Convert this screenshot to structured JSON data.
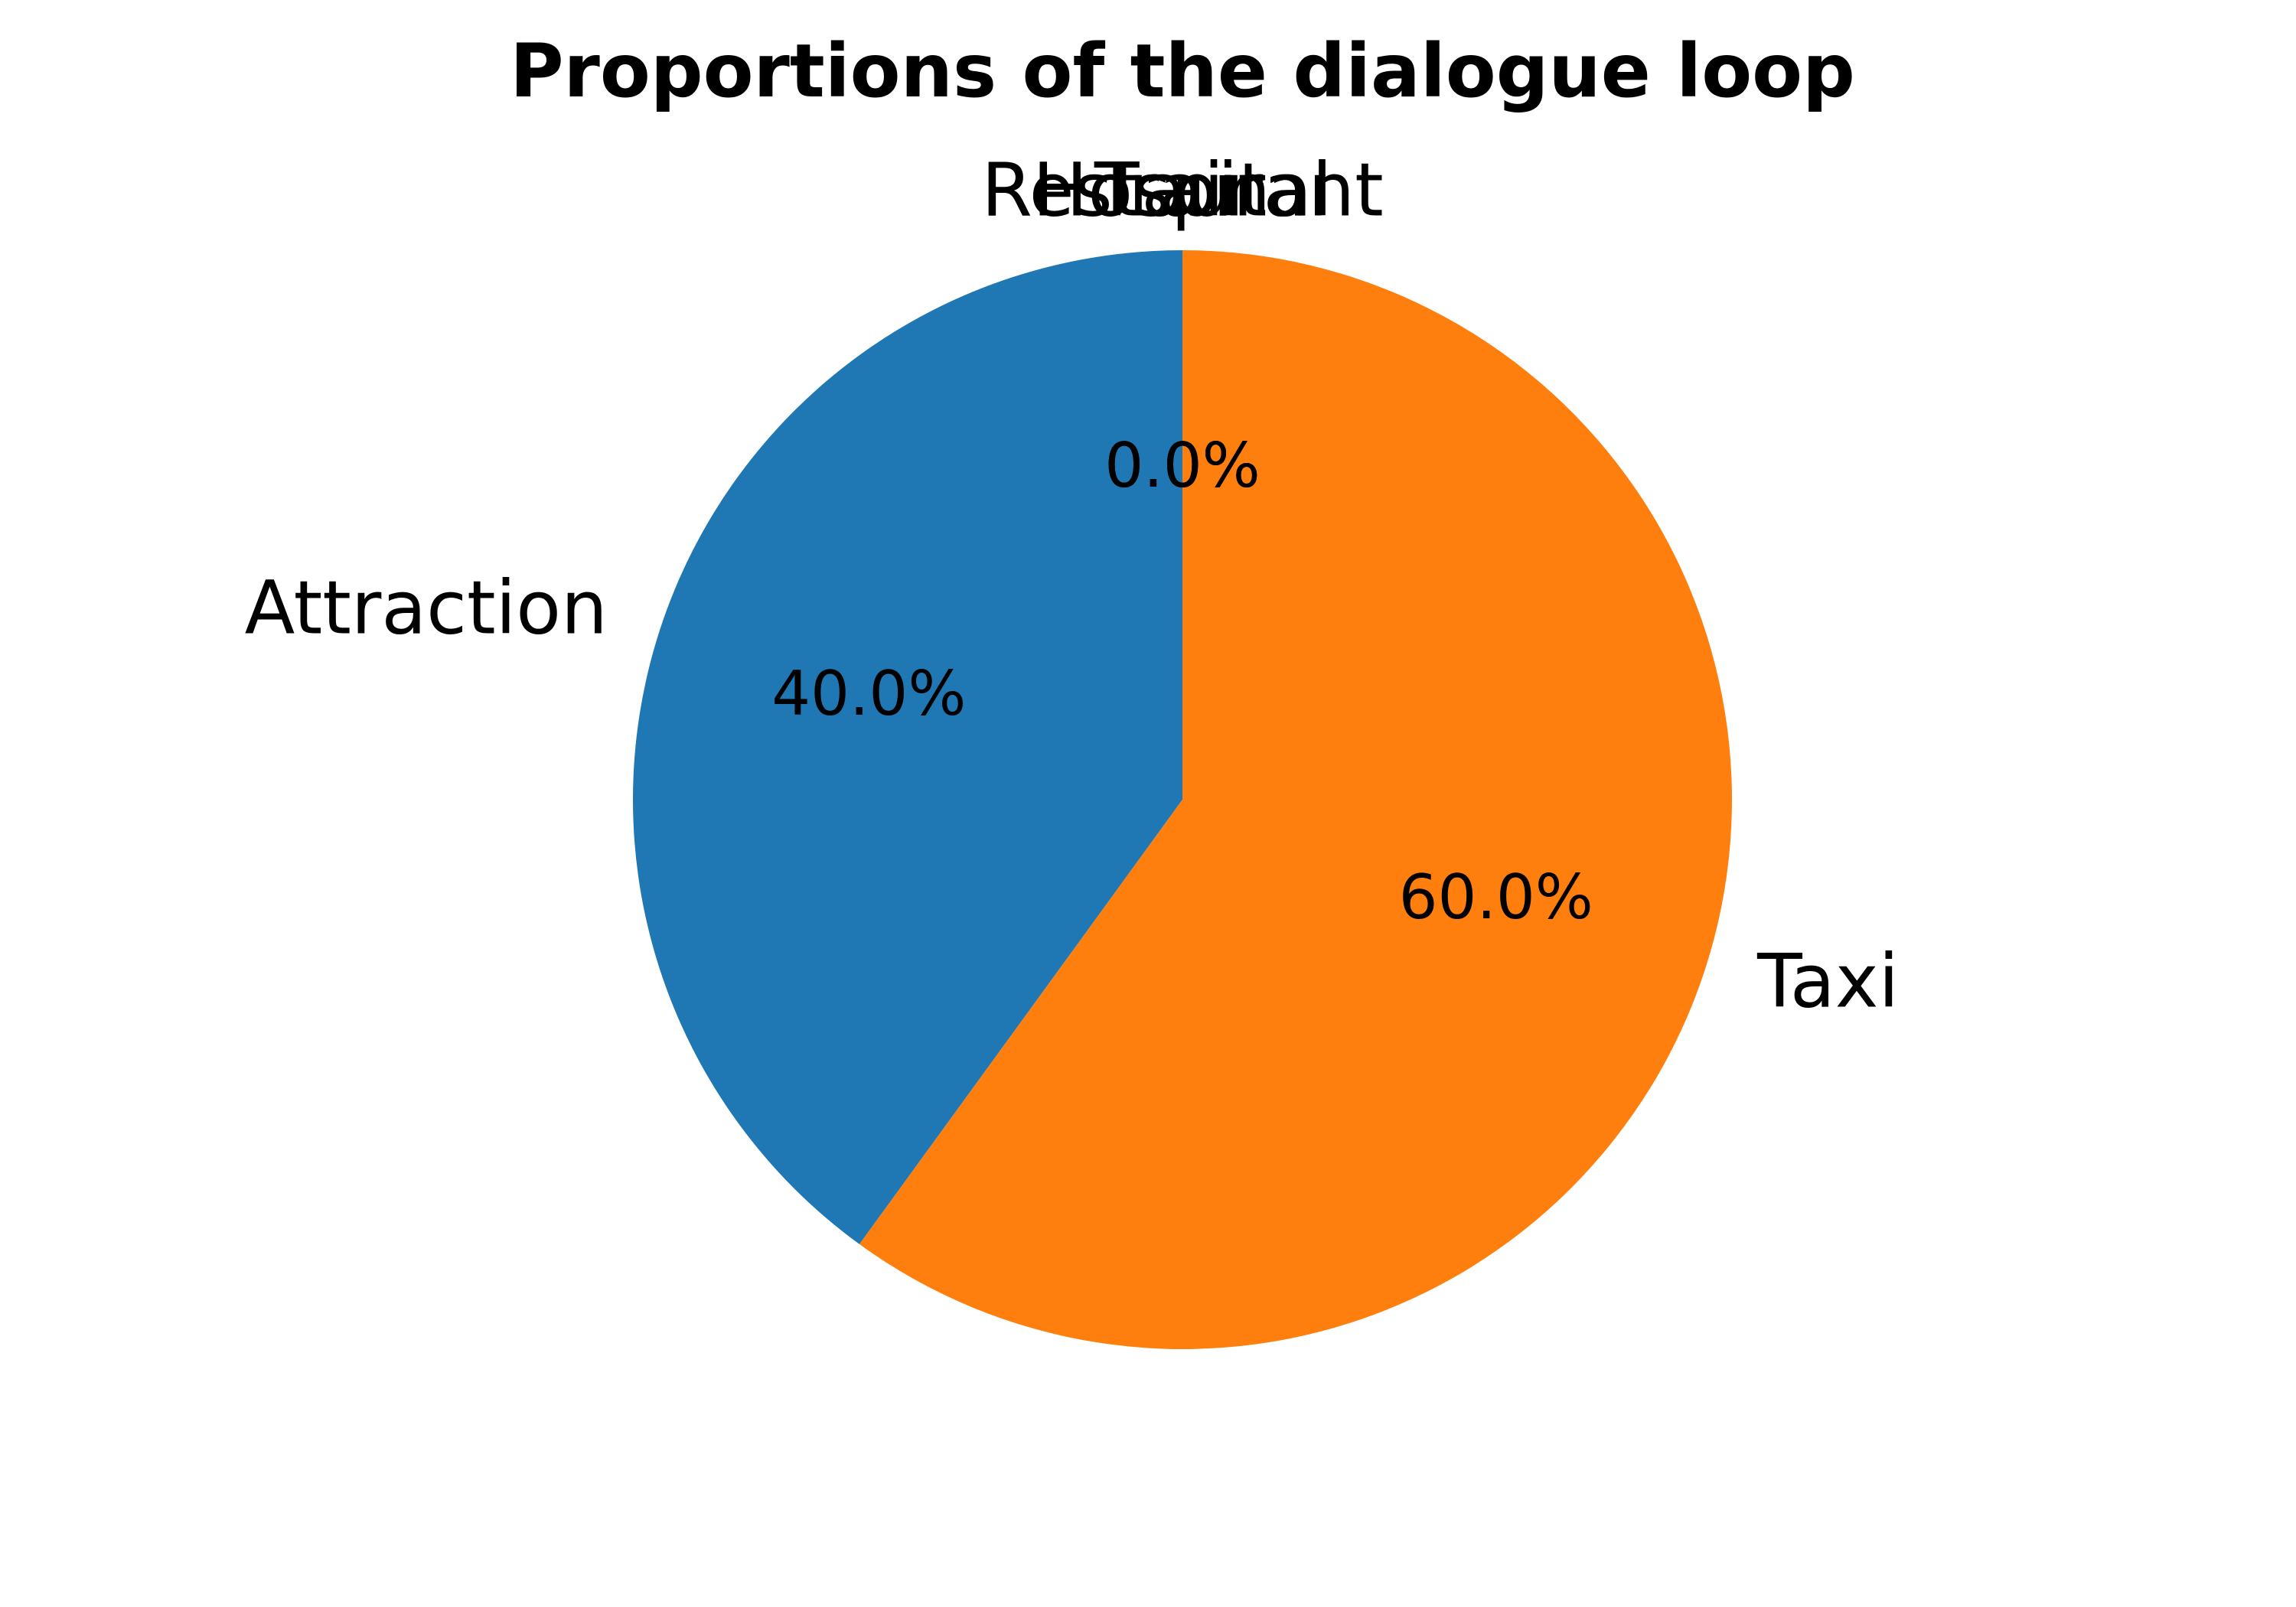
{
  "chart_data": {
    "type": "pie",
    "title": "Proportions of the dialogue loop",
    "slices": [
      {
        "label": "Restaurant",
        "value": 0.0,
        "pct_label": "0.0%",
        "color": "#1f77b4"
      },
      {
        "label": "Hospital",
        "value": 0.0,
        "pct_label": "0.0%",
        "color": "#1f77b4"
      },
      {
        "label": "Train",
        "value": 0.0,
        "pct_label": "0.0%",
        "color": "#1f77b4"
      },
      {
        "label": "Attraction",
        "value": 40.0,
        "pct_label": "40.0%",
        "color": "#1f77b4"
      },
      {
        "label": "Taxi",
        "value": 60.0,
        "pct_label": "60.0%",
        "color": "#ff7f0e"
      }
    ],
    "start_angle_deg": 90,
    "direction": "counterclockwise"
  }
}
